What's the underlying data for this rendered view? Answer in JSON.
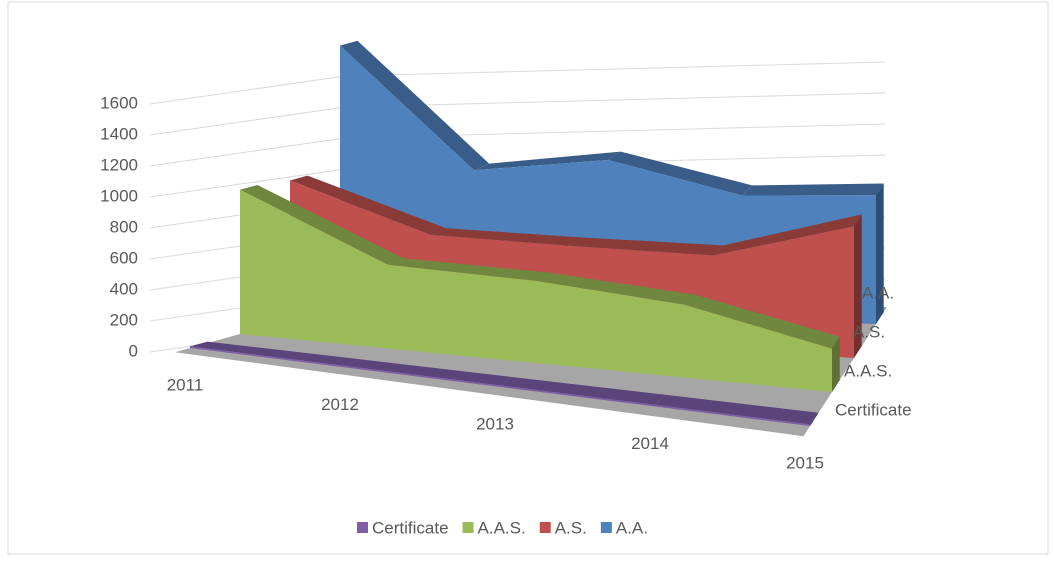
{
  "chart_data": {
    "type": "area3d",
    "categories": [
      "2011",
      "2012",
      "2013",
      "2014",
      "2015"
    ],
    "series": [
      {
        "name": "Certificate",
        "color": "#7f5fa8",
        "values": [
          10,
          10,
          10,
          10,
          10
        ]
      },
      {
        "name": "A.A.S.",
        "color": "#9bbb59",
        "values": [
          930,
          540,
          530,
          470,
          280
        ]
      },
      {
        "name": "A.S.",
        "color": "#c0504d",
        "values": [
          900,
          610,
          600,
          600,
          850
        ]
      },
      {
        "name": "A.A.",
        "color": "#4f81bd",
        "values": [
          1680,
          905,
          1000,
          800,
          830
        ]
      }
    ],
    "ylim": [
      0,
      1600
    ],
    "yticks": [
      0,
      200,
      400,
      600,
      800,
      1000,
      1200,
      1400,
      1600
    ],
    "grid": true,
    "legend": "bottom"
  }
}
